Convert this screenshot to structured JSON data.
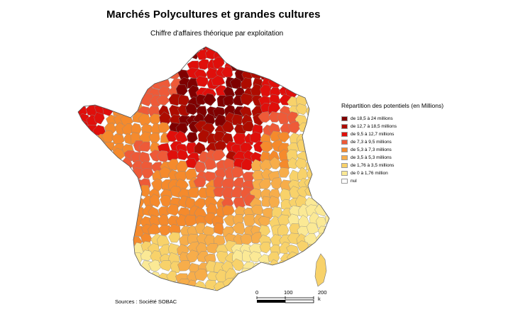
{
  "title": "Marchés Polycultures et grandes cultures",
  "subtitle": "Chiffre d'affaires théorique par exploitation",
  "legend": {
    "title": "Répartition des potentiels (en Millions)",
    "items": [
      {
        "label": "de 18,5 à 24 millions",
        "color": "#7f0000"
      },
      {
        "label": "de 12,7 à 18,5 millions",
        "color": "#ae0c00"
      },
      {
        "label": "de 9,5 à 12,7 millions",
        "color": "#e00f0b"
      },
      {
        "label": "de 7,3 à 9,5 millions",
        "color": "#ee5a38"
      },
      {
        "label": "de 5,3 à 7,3 millions",
        "color": "#f58a2c"
      },
      {
        "label": "de 3,5 à 5,3 millions",
        "color": "#f7ad4a"
      },
      {
        "label": "de 1,76 à 3,5 millions",
        "color": "#f8d26a"
      },
      {
        "label": "de 0 à 1,76 million",
        "color": "#fbe995"
      },
      {
        "label": "nul",
        "color": "#ffffff"
      }
    ]
  },
  "sources": "Sources : Société SOBAC",
  "scale": {
    "ticks": [
      "0",
      "100",
      "200 k"
    ]
  }
}
